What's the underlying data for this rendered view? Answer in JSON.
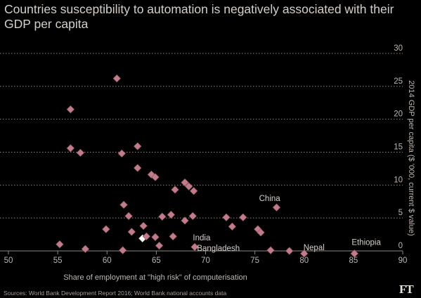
{
  "header": {
    "title": "Countries susceptibility to automation is negatively associated with their GDP per capita"
  },
  "footer": {
    "source": "Sources: World Bank Development Report 2016; World Bank national accounts data",
    "logo": "FT"
  },
  "colors": {
    "background": "#000000",
    "point": "#c27b8b",
    "point_stroke": "#8f5463",
    "highlight": "#ffffff",
    "text": "#d4cfca",
    "grid": "#8c8885"
  },
  "chart_data": {
    "type": "scatter",
    "xlabel": "Share of employment at \"high risk\" of computerisation",
    "ylabel": "2014 GDP per capita ($ '000, current $ value)",
    "xlim": [
      50,
      90
    ],
    "ylim": [
      0,
      30
    ],
    "xticks": [
      50,
      55,
      60,
      65,
      70,
      75,
      80,
      85,
      90
    ],
    "yticks": [
      0,
      5,
      10,
      15,
      20,
      25,
      30
    ],
    "grid": "horizontal",
    "points": [
      {
        "x": 55.2,
        "y": 1.0
      },
      {
        "x": 56.3,
        "y": 21.5
      },
      {
        "x": 56.3,
        "y": 15.6
      },
      {
        "x": 57.3,
        "y": 14.9
      },
      {
        "x": 57.8,
        "y": 0.3
      },
      {
        "x": 59.9,
        "y": 3.3
      },
      {
        "x": 61.0,
        "y": 26.2
      },
      {
        "x": 61.5,
        "y": 14.8
      },
      {
        "x": 61.6,
        "y": 0.1
      },
      {
        "x": 61.7,
        "y": 7.0
      },
      {
        "x": 62.2,
        "y": 5.3
      },
      {
        "x": 62.5,
        "y": 2.9
      },
      {
        "x": 63.1,
        "y": 15.9
      },
      {
        "x": 63.1,
        "y": 12.6
      },
      {
        "x": 63.7,
        "y": 3.8
      },
      {
        "x": 63.6,
        "y": 1.9,
        "highlight": true
      },
      {
        "x": 64.0,
        "y": 2.2
      },
      {
        "x": 64.5,
        "y": 11.6
      },
      {
        "x": 64.9,
        "y": 11.2
      },
      {
        "x": 64.9,
        "y": 2.1
      },
      {
        "x": 65.3,
        "y": 0.8
      },
      {
        "x": 65.6,
        "y": 5.2
      },
      {
        "x": 66.5,
        "y": 5.5
      },
      {
        "x": 66.7,
        "y": 2.2
      },
      {
        "x": 66.9,
        "y": 9.3
      },
      {
        "x": 67.9,
        "y": 10.4
      },
      {
        "x": 68.3,
        "y": 9.8
      },
      {
        "x": 68.8,
        "y": 9.1
      },
      {
        "x": 67.9,
        "y": 4.6
      },
      {
        "x": 68.7,
        "y": 5.3
      },
      {
        "x": 68.9,
        "y": 0.6
      },
      {
        "x": 72.1,
        "y": 5.1
      },
      {
        "x": 72.7,
        "y": 3.7
      },
      {
        "x": 73.8,
        "y": 5.1
      },
      {
        "x": 75.3,
        "y": 3.3
      },
      {
        "x": 75.6,
        "y": 2.8
      },
      {
        "x": 76.6,
        "y": 0.1
      },
      {
        "x": 77.2,
        "y": 6.6
      },
      {
        "x": 78.5,
        "y": 0.0
      },
      {
        "x": 80.0,
        "y": -0.4
      },
      {
        "x": 85.1,
        "y": -0.4
      }
    ],
    "annotations": [
      {
        "label": "China",
        "x": 76.5,
        "y": 7.6
      },
      {
        "label": "India",
        "x": 69.6,
        "y": 1.6
      },
      {
        "label": "Bangladesh",
        "x": 71.3,
        "y": 0.0
      },
      {
        "label": "Nepal",
        "x": 81.0,
        "y": 0.1
      },
      {
        "label": "Ethiopia",
        "x": 86.3,
        "y": 0.9
      }
    ]
  }
}
